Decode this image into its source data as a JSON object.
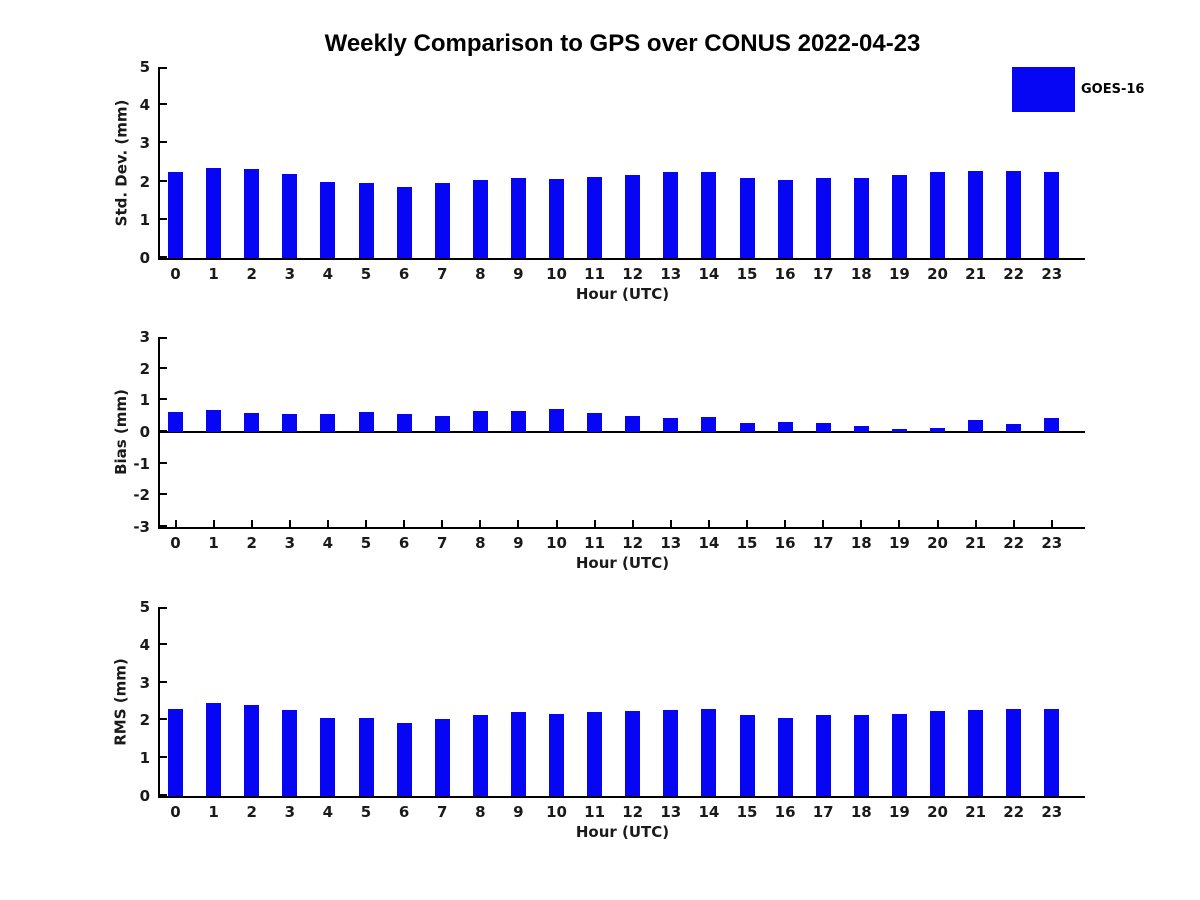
{
  "title": "Weekly Comparison to GPS over CONUS 2022-04-23",
  "legend": {
    "label": "GOES-16",
    "color": "#0606f5"
  },
  "colors": {
    "bar": "#0606f5",
    "axis": "#000000"
  },
  "chart_data": [
    {
      "type": "bar",
      "name": "std-dev",
      "ylabel": "Std. Dev. (mm)",
      "xlabel": "Hour (UTC)",
      "ylim": [
        0,
        5
      ],
      "yticks": [
        0,
        1,
        2,
        3,
        4,
        5
      ],
      "legend_entry": "GOES-16",
      "grid": false,
      "categories": [
        "0",
        "1",
        "2",
        "3",
        "4",
        "5",
        "6",
        "7",
        "8",
        "9",
        "10",
        "11",
        "12",
        "13",
        "14",
        "15",
        "16",
        "17",
        "18",
        "19",
        "20",
        "21",
        "22",
        "23"
      ],
      "values": [
        2.25,
        2.36,
        2.33,
        2.2,
        2.0,
        1.97,
        1.87,
        1.96,
        2.05,
        2.1,
        2.06,
        2.13,
        2.16,
        2.24,
        2.24,
        2.1,
        2.04,
        2.1,
        2.09,
        2.16,
        2.26,
        2.27,
        2.29,
        2.24
      ]
    },
    {
      "type": "bar",
      "name": "bias",
      "ylabel": "Bias (mm)",
      "xlabel": "Hour (UTC)",
      "ylim": [
        -3,
        3
      ],
      "yticks": [
        -3,
        -2,
        -1,
        0,
        1,
        2,
        3
      ],
      "legend_entry": "GOES-16",
      "grid": false,
      "categories": [
        "0",
        "1",
        "2",
        "3",
        "4",
        "5",
        "6",
        "7",
        "8",
        "9",
        "10",
        "11",
        "12",
        "13",
        "14",
        "15",
        "16",
        "17",
        "18",
        "19",
        "20",
        "21",
        "22",
        "23"
      ],
      "values": [
        0.62,
        0.7,
        0.61,
        0.57,
        0.56,
        0.62,
        0.56,
        0.49,
        0.65,
        0.67,
        0.72,
        0.61,
        0.49,
        0.43,
        0.47,
        0.29,
        0.32,
        0.29,
        0.19,
        0.11,
        0.12,
        0.37,
        0.25,
        0.43
      ]
    },
    {
      "type": "bar",
      "name": "rms",
      "ylabel": "RMS (mm)",
      "xlabel": "Hour (UTC)",
      "ylim": [
        0,
        5
      ],
      "yticks": [
        0,
        1,
        2,
        3,
        4,
        5
      ],
      "legend_entry": "GOES-16",
      "grid": false,
      "categories": [
        "0",
        "1",
        "2",
        "3",
        "4",
        "5",
        "6",
        "7",
        "8",
        "9",
        "10",
        "11",
        "12",
        "13",
        "14",
        "15",
        "16",
        "17",
        "18",
        "19",
        "20",
        "21",
        "22",
        "23"
      ],
      "values": [
        2.29,
        2.46,
        2.42,
        2.28,
        2.07,
        2.07,
        1.94,
        2.05,
        2.15,
        2.21,
        2.17,
        2.21,
        2.25,
        2.28,
        2.3,
        2.14,
        2.07,
        2.14,
        2.13,
        2.17,
        2.24,
        2.27,
        2.3,
        2.3
      ]
    }
  ]
}
